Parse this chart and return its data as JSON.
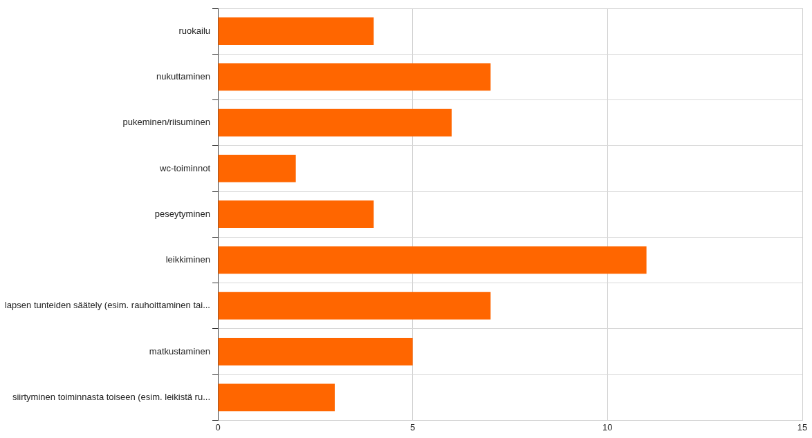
{
  "chart_data": {
    "type": "bar",
    "orientation": "horizontal",
    "categories": [
      "ruokailu",
      "nukuttaminen",
      "pukeminen/riisuminen",
      "wc-toiminnot",
      "peseytyminen",
      "leikkiminen",
      "lapsen tunteiden säätely (esim. rauhoittaminen tai...",
      "matkustaminen",
      "siirtyminen toiminnasta toiseen (esim. leikistä ru..."
    ],
    "values": [
      4,
      7,
      6,
      2,
      4,
      11,
      7,
      5,
      3
    ],
    "color": "#ff6600",
    "xlim": [
      0,
      15
    ],
    "xticks": [
      0,
      5,
      10,
      15
    ],
    "grid": true,
    "legend": false
  }
}
